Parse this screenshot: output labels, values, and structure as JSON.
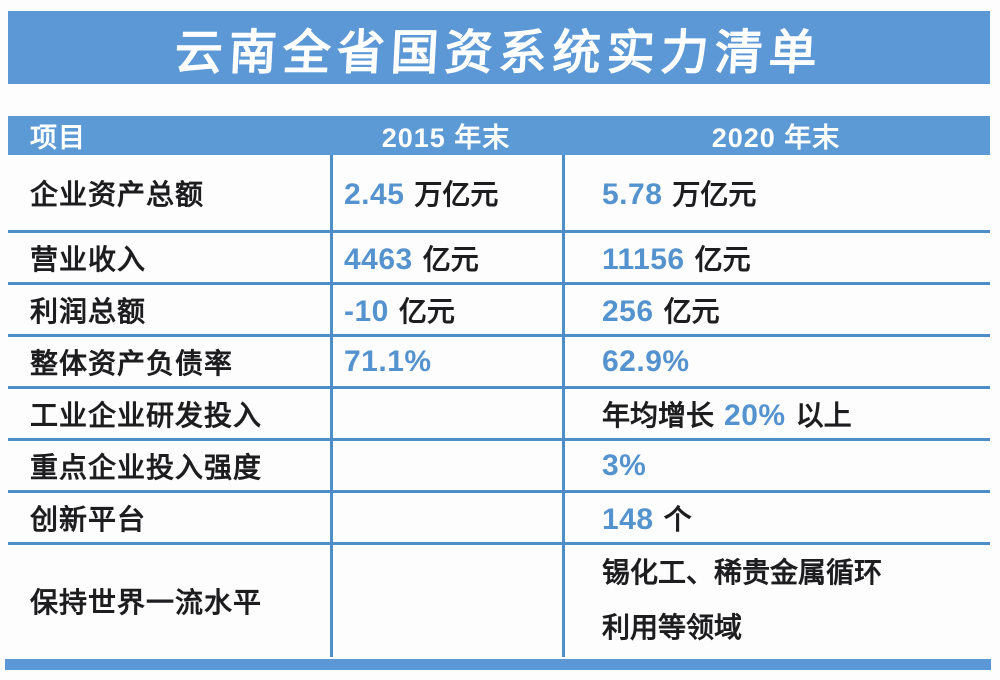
{
  "title": "云南全省国资系统实力清单",
  "colors": {
    "banner_blue": "#5b98d5",
    "header_blue": "#5c9ad6",
    "line_blue": "#4d8ec9",
    "number_blue": "#5593cf",
    "text_dark": "#1d1d1f"
  },
  "table": {
    "headers": [
      "项目",
      "2015 年末",
      "2020 年末"
    ],
    "rows": [
      {
        "label": "企业资产总额",
        "y2015": {
          "pre": "",
          "num": "2.45",
          "suf": "万亿元"
        },
        "y2020": {
          "pre": "",
          "num": "5.78",
          "suf": "万亿元"
        }
      },
      {
        "label": "营业收入",
        "y2015": {
          "pre": "",
          "num": "4463",
          "suf": "亿元"
        },
        "y2020": {
          "pre": "",
          "num": "11156",
          "suf": "亿元"
        }
      },
      {
        "label": "利润总额",
        "y2015": {
          "pre": "",
          "num": "-10",
          "suf": "亿元"
        },
        "y2020": {
          "pre": "",
          "num": "256",
          "suf": "亿元"
        }
      },
      {
        "label": "整体资产负债率",
        "y2015": {
          "pre": "",
          "num": "71.1%",
          "suf": ""
        },
        "y2020": {
          "pre": "",
          "num": "62.9%",
          "suf": ""
        }
      },
      {
        "label": "工业企业研发投入",
        "y2015": {
          "pre": "",
          "num": "",
          "suf": ""
        },
        "y2020": {
          "pre": "年均增长",
          "num": "20%",
          "suf": "以上"
        }
      },
      {
        "label": "重点企业投入强度",
        "y2015": {
          "pre": "",
          "num": "",
          "suf": ""
        },
        "y2020": {
          "pre": "",
          "num": "3%",
          "suf": ""
        }
      },
      {
        "label": "创新平台",
        "y2015": {
          "pre": "",
          "num": "",
          "suf": ""
        },
        "y2020": {
          "pre": "",
          "num": "148",
          "suf": "个"
        }
      },
      {
        "label": "保持世界一流水平",
        "y2015": {
          "pre": "",
          "num": "",
          "suf": ""
        },
        "y2020": {
          "pre": "",
          "num": "",
          "suf": "锡化工、稀贵金属循环利用等领域"
        }
      }
    ]
  },
  "chart_data": {
    "type": "table",
    "title": "云南全省国资系统实力清单",
    "columns": [
      "项目",
      "2015 年末",
      "2020 年末"
    ],
    "rows": [
      [
        "企业资产总额",
        "2.45 万亿元",
        "5.78 万亿元"
      ],
      [
        "营业收入",
        "4463 亿元",
        "11156 亿元"
      ],
      [
        "利润总额",
        "-10 亿元",
        "256 亿元"
      ],
      [
        "整体资产负债率",
        "71.1%",
        "62.9%"
      ],
      [
        "工业企业研发投入",
        "",
        "年均增长 20% 以上"
      ],
      [
        "重点企业投入强度",
        "",
        "3%"
      ],
      [
        "创新平台",
        "",
        "148 个"
      ],
      [
        "保持世界一流水平",
        "",
        "锡化工、稀贵金属循环利用等领域"
      ]
    ],
    "layout": {
      "grid": "horizontal rules between rows, 2 vertical column dividers",
      "legend_position": "none"
    }
  }
}
